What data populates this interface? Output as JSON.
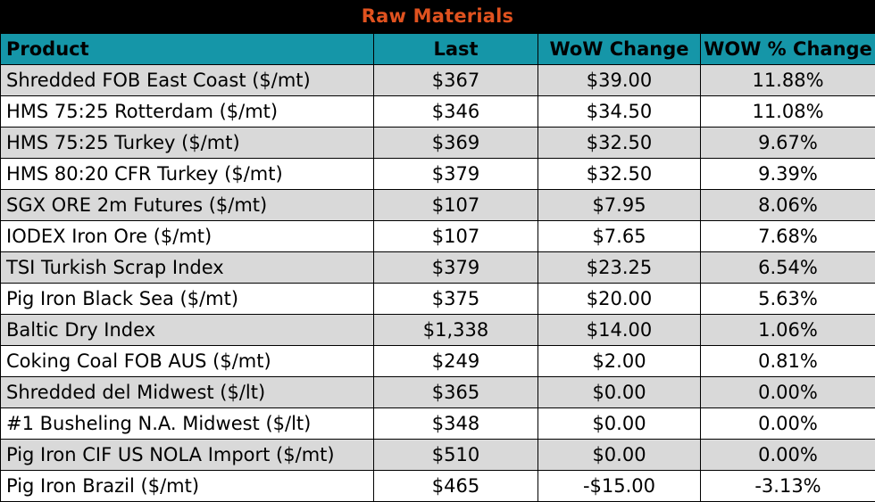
{
  "title": "Raw Materials",
  "columns": [
    "Product",
    "Last",
    "WoW Change",
    "WOW % Change"
  ],
  "rows": [
    [
      "Shredded FOB East Coast ($/mt)",
      "$367",
      "$39.00",
      "11.88%"
    ],
    [
      "HMS 75:25 Rotterdam ($/mt)",
      "$346",
      "$34.50",
      "11.08%"
    ],
    [
      "HMS 75:25 Turkey ($/mt)",
      "$369",
      "$32.50",
      "9.67%"
    ],
    [
      "HMS 80:20 CFR Turkey ($/mt)",
      "$379",
      "$32.50",
      "9.39%"
    ],
    [
      "SGX ORE 2m Futures ($/mt)",
      "$107",
      "$7.95",
      "8.06%"
    ],
    [
      "IODEX  Iron Ore ($/mt)",
      "$107",
      "$7.65",
      "7.68%"
    ],
    [
      "TSI Turkish Scrap Index",
      "$379",
      "$23.25",
      "6.54%"
    ],
    [
      "Pig Iron Black Sea ($/mt)",
      "$375",
      "$20.00",
      "5.63%"
    ],
    [
      "Baltic Dry Index",
      "$1,338",
      "$14.00",
      "1.06%"
    ],
    [
      "Coking Coal FOB AUS ($/mt)",
      "$249",
      "$2.00",
      "0.81%"
    ],
    [
      "Shredded del  Midwest ($/lt)",
      "$365",
      "$0.00",
      "0.00%"
    ],
    [
      "#1 Busheling N.A. Midwest ($/lt)",
      "$348",
      "$0.00",
      "0.00%"
    ],
    [
      "Pig Iron CIF US NOLA Import ($/mt)",
      "$510",
      "$0.00",
      "0.00%"
    ],
    [
      "Pig Iron Brazil ($/mt)",
      "$465",
      "-$15.00",
      "-3.13%"
    ]
  ],
  "colors": {
    "title_bg": "#000000",
    "title_text": "#e0521f",
    "header_bg": "#1596a8",
    "row_shade": "#d9d9d9"
  }
}
